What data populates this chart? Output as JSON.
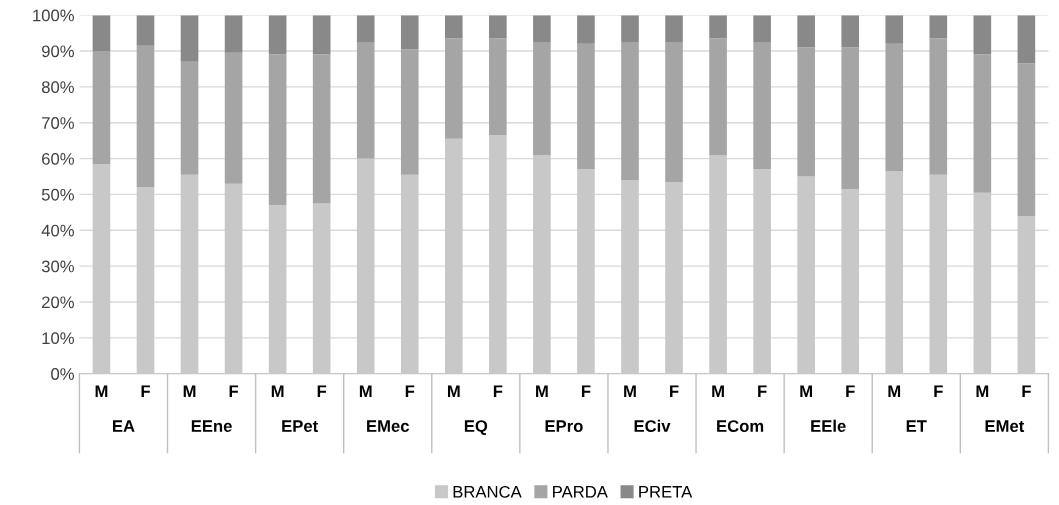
{
  "chart_data": {
    "type": "bar",
    "stacked": true,
    "categories": [
      "M",
      "F",
      "M",
      "F",
      "M",
      "F",
      "M",
      "F",
      "M",
      "F",
      "M",
      "F",
      "M",
      "F",
      "M",
      "F",
      "M",
      "F",
      "M",
      "F",
      "M",
      "F"
    ],
    "series": [
      {
        "name": "BRANCA",
        "color": "#c8c8c8",
        "values": [
          58.5,
          52,
          55.5,
          53,
          47,
          47.5,
          60,
          55.5,
          65.5,
          66.5,
          61,
          57,
          54,
          53.5,
          61,
          57,
          55,
          51.5,
          56.5,
          55.5,
          50.5,
          44
        ]
      },
      {
        "name": "PARDA",
        "color": "#a5a5a5",
        "values": [
          31.5,
          39.5,
          31.5,
          36.5,
          42,
          41.5,
          32.5,
          35,
          28,
          27,
          31.5,
          35,
          38.5,
          39,
          32.5,
          35.5,
          36,
          39.5,
          35.5,
          38,
          38.5,
          42.5
        ]
      },
      {
        "name": "PRETA",
        "color": "#898989",
        "values": [
          10,
          8.5,
          13,
          10.5,
          11,
          11,
          7.5,
          9.5,
          6.5,
          6.5,
          7.5,
          8,
          7.5,
          7.5,
          6.5,
          7.5,
          9,
          9,
          8,
          6.5,
          11,
          13.5
        ]
      }
    ],
    "annotations": [
      "EA",
      "EEne",
      "EPet",
      "EMec",
      "EQ",
      "EPro",
      "ECiv",
      "ECom",
      "EEle",
      "ET",
      "EMet"
    ],
    "ylim": [
      0,
      100
    ],
    "yticks": [
      {
        "value": 0,
        "label": "0%"
      },
      {
        "value": 10,
        "label": "10%"
      },
      {
        "value": 20,
        "label": "20%"
      },
      {
        "value": 30,
        "label": "30%"
      },
      {
        "value": 40,
        "label": "40%"
      },
      {
        "value": 50,
        "label": "50%"
      },
      {
        "value": 60,
        "label": "60%"
      },
      {
        "value": 70,
        "label": "70%"
      },
      {
        "value": 80,
        "label": "80%"
      },
      {
        "value": 90,
        "label": "90%"
      },
      {
        "value": 100,
        "label": "100%"
      }
    ],
    "grid": "y",
    "legend": "bottom"
  }
}
